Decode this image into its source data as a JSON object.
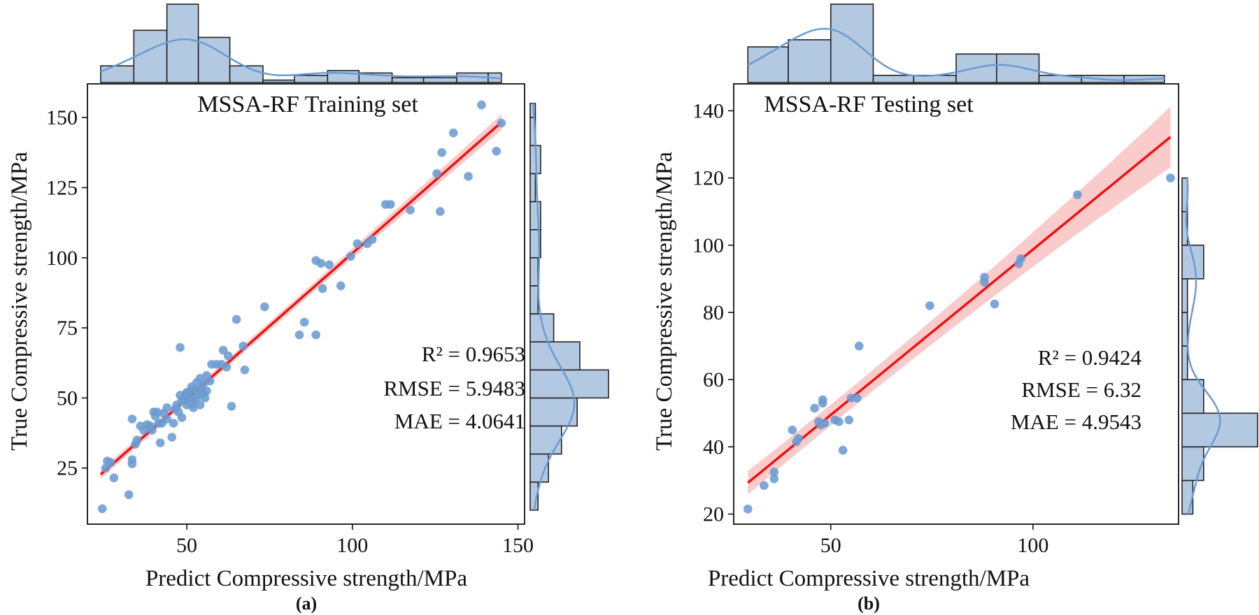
{
  "figure": {
    "panels": [
      {
        "panel_label": "(a)",
        "title": "MSSA-RF Training set",
        "xlabel": "Predict Compressive strength/MPa",
        "ylabel": "True Compressive strength/MPa",
        "metrics": [
          "R² = 0.9653",
          "RMSE = 5.9483",
          "MAE = 4.0641"
        ]
      },
      {
        "panel_label": "(b)",
        "title": "MSSA-RF Testing set",
        "xlabel": "Predict Compressive strength/MPa",
        "ylabel": "True Compressive strength/MPa",
        "metrics": [
          "R² = 0.9424",
          "RMSE = 6.32",
          "MAE = 4.9543"
        ]
      }
    ]
  },
  "chart_data": [
    {
      "type": "scatter",
      "title": "MSSA-RF Training set",
      "xlabel": "Predict Compressive strength/MPa",
      "ylabel": "True Compressive strength/MPa",
      "xlim": [
        20,
        152
      ],
      "ylim": [
        5,
        162
      ],
      "xticks": [
        50,
        100,
        150
      ],
      "yticks": [
        25,
        50,
        75,
        100,
        125,
        150
      ],
      "colors": {
        "points": "#6a9bd1",
        "fit": "#ee1111",
        "band": "#f7b9b9",
        "hist": "#b3c9e2",
        "kde": "#6a9bd1"
      },
      "points": [
        [
          24.5,
          10.5
        ],
        [
          25.5,
          25
        ],
        [
          26,
          27.5
        ],
        [
          27,
          27
        ],
        [
          28,
          21.5
        ],
        [
          32.5,
          15.5
        ],
        [
          33.5,
          28
        ],
        [
          33.5,
          26.5
        ],
        [
          33.5,
          42.5
        ],
        [
          34.5,
          33.5
        ],
        [
          35,
          35
        ],
        [
          36,
          40
        ],
        [
          37,
          38.5
        ],
        [
          38,
          40.5
        ],
        [
          39,
          40
        ],
        [
          39.5,
          38.5
        ],
        [
          40,
          45
        ],
        [
          40.5,
          43.5
        ],
        [
          41,
          45
        ],
        [
          41.5,
          41
        ],
        [
          42,
          34
        ],
        [
          42.5,
          41
        ],
        [
          43,
          44.5
        ],
        [
          44,
          42.5
        ],
        [
          44,
          46.5
        ],
        [
          45.5,
          36
        ],
        [
          46,
          41
        ],
        [
          46.5,
          46
        ],
        [
          47,
          47.5
        ],
        [
          47.5,
          45
        ],
        [
          48,
          68
        ],
        [
          48,
          51
        ],
        [
          48.5,
          49
        ],
        [
          48.5,
          43
        ],
        [
          49,
          49
        ],
        [
          49.5,
          51
        ],
        [
          50,
          47.5
        ],
        [
          50,
          52
        ],
        [
          50.5,
          50
        ],
        [
          51,
          52.5
        ],
        [
          51.5,
          48
        ],
        [
          51.5,
          54
        ],
        [
          52,
          49.5
        ],
        [
          52,
          46.5
        ],
        [
          52.5,
          53
        ],
        [
          53,
          50
        ],
        [
          53,
          55.5
        ],
        [
          53.5,
          51.5
        ],
        [
          54,
          47.5
        ],
        [
          54,
          57
        ],
        [
          54.5,
          53
        ],
        [
          55,
          51.5
        ],
        [
          55,
          55
        ],
        [
          55.5,
          50
        ],
        [
          56,
          52.5
        ],
        [
          56,
          58
        ],
        [
          57,
          56
        ],
        [
          57.5,
          62
        ],
        [
          59,
          62
        ],
        [
          60.5,
          62
        ],
        [
          61,
          67
        ],
        [
          62,
          61
        ],
        [
          62.5,
          65
        ],
        [
          63.5,
          47
        ],
        [
          65,
          78
        ],
        [
          67.5,
          60
        ],
        [
          67,
          68.5
        ],
        [
          73.5,
          82.5
        ],
        [
          84,
          72.5
        ],
        [
          85.5,
          77
        ],
        [
          89,
          99
        ],
        [
          89,
          72.5
        ],
        [
          90.5,
          98
        ],
        [
          91,
          89
        ],
        [
          93,
          97.5
        ],
        [
          96.5,
          90
        ],
        [
          99.5,
          100.5
        ],
        [
          101.5,
          105
        ],
        [
          104.5,
          105
        ],
        [
          106,
          106.5
        ],
        [
          110,
          119
        ],
        [
          111.5,
          119
        ],
        [
          117.5,
          117
        ],
        [
          125.5,
          130
        ],
        [
          126.5,
          116.5
        ],
        [
          127,
          137.5
        ],
        [
          130.5,
          144.5
        ],
        [
          135,
          129
        ],
        [
          139,
          154.5
        ],
        [
          143.5,
          138
        ],
        [
          145,
          148
        ]
      ],
      "fit": {
        "x": [
          24,
          145
        ],
        "y": [
          22.7,
          148.3
        ],
        "band_half_width": [
          1.6,
          0.9,
          2.8
        ]
      },
      "hist_x": {
        "edges": [
          24,
          34,
          44,
          53.5,
          63,
          73,
          82.5,
          92.5,
          102,
          112,
          121.5,
          131.5,
          141,
          145
        ],
        "counts": [
          7,
          22,
          33,
          19,
          7,
          1,
          3,
          5,
          4,
          2,
          2,
          4,
          4
        ]
      },
      "hist_y": {
        "edges": [
          10,
          20,
          30,
          40,
          50,
          60,
          70,
          80,
          90,
          100,
          110,
          120,
          130,
          140,
          150,
          155
        ],
        "counts": [
          3,
          7,
          12,
          18,
          30,
          19,
          9,
          3,
          3,
          4,
          4,
          2,
          4,
          2,
          2
        ]
      },
      "metrics_labels": [
        "R² = 0.9653",
        "RMSE = 5.9483",
        "MAE = 4.0641"
      ]
    },
    {
      "type": "scatter",
      "title": "MSSA-RF Testing set",
      "xlabel": "Predict Compressive strength/MPa",
      "ylabel": "True Compressive strength/MPa",
      "xlim": [
        26,
        136
      ],
      "ylim": [
        17,
        148
      ],
      "xticks": [
        50,
        100
      ],
      "yticks": [
        20,
        40,
        60,
        80,
        100,
        120,
        140
      ],
      "colors": {
        "points": "#6a9bd1",
        "fit": "#ee1111",
        "band": "#f7b9b9",
        "hist": "#b3c9e2",
        "kde": "#6a9bd1"
      },
      "points": [
        [
          29.5,
          21.5
        ],
        [
          33.5,
          28.5
        ],
        [
          36,
          32.5
        ],
        [
          36,
          30.5
        ],
        [
          40.5,
          45
        ],
        [
          41.5,
          41.5
        ],
        [
          42,
          42.5
        ],
        [
          46,
          51.5
        ],
        [
          47,
          47.5
        ],
        [
          47.5,
          46.5
        ],
        [
          48,
          54
        ],
        [
          48,
          53
        ],
        [
          48.5,
          47
        ],
        [
          51,
          48
        ],
        [
          52,
          47.5
        ],
        [
          53,
          39
        ],
        [
          54.5,
          48
        ],
        [
          55,
          54.5
        ],
        [
          56.5,
          54.5
        ],
        [
          57,
          70
        ],
        [
          74.5,
          82
        ],
        [
          88,
          90.5
        ],
        [
          88,
          89
        ],
        [
          90.5,
          82.5
        ],
        [
          96.5,
          94.5
        ],
        [
          97,
          96
        ],
        [
          111,
          115
        ],
        [
          134,
          120
        ]
      ],
      "fit": {
        "x": [
          29.5,
          134
        ],
        "y": [
          29.3,
          132.2
        ],
        "band_half_width": [
          3.5,
          1.5,
          9.0
        ]
      },
      "hist_x": {
        "edges": [
          29.5,
          39.5,
          50,
          60.5,
          70.5,
          81,
          91,
          101.5,
          112,
          122.5,
          132.5
        ],
        "counts": [
          5,
          6,
          11,
          1,
          1,
          4,
          4,
          1,
          1,
          1
        ]
      },
      "hist_y": {
        "edges": [
          20,
          30,
          40,
          50,
          60,
          70,
          80,
          90,
          100,
          110,
          120
        ],
        "counts": [
          2,
          4,
          14,
          4,
          1,
          1,
          1,
          4,
          1,
          1
        ]
      },
      "metrics_labels": [
        "R² = 0.9424",
        "RMSE = 6.32",
        "MAE = 4.9543"
      ]
    }
  ]
}
